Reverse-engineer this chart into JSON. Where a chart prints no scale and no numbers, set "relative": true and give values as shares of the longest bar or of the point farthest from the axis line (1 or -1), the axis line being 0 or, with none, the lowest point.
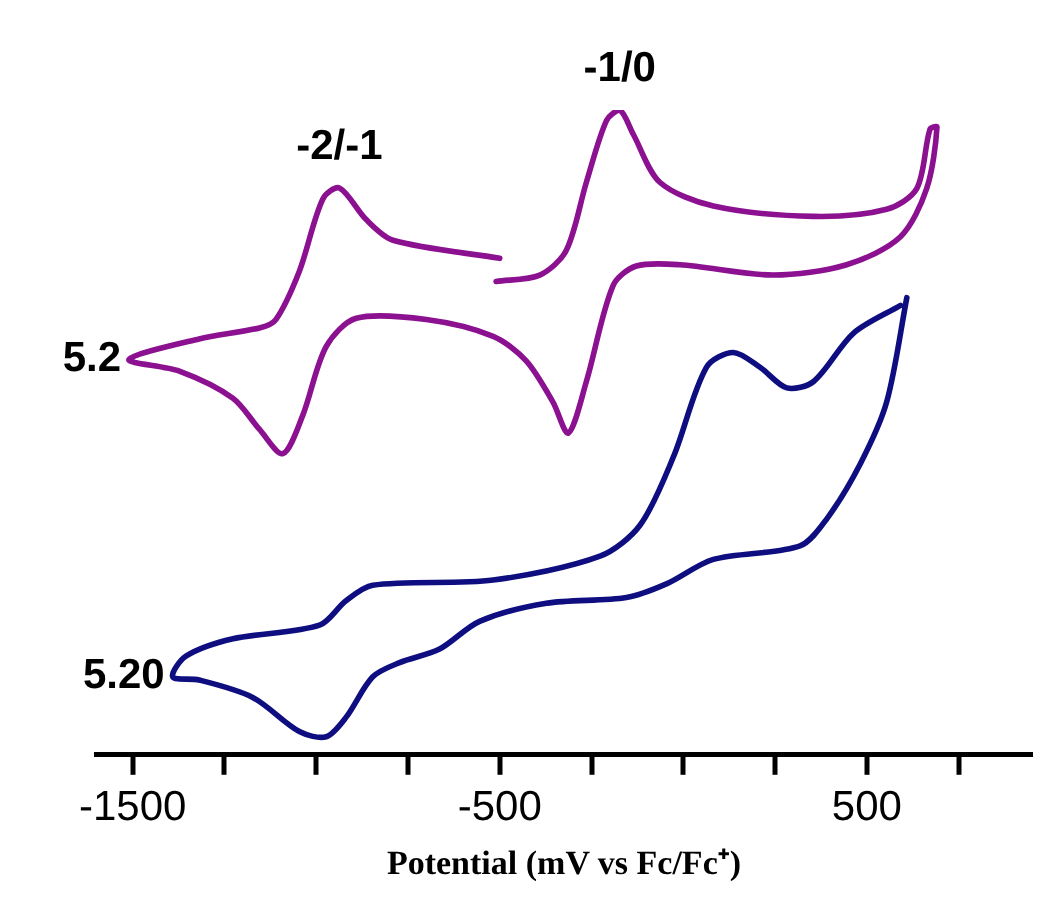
{
  "chart_data": {
    "type": "line",
    "xlabel": "Potential (mV vs Fc/Fc⁺)",
    "relative": true,
    "grid": false,
    "legend": false,
    "marker": "none",
    "line_style": "solid",
    "xlim": [
      -1600,
      950
    ],
    "xticks": [
      -1500,
      {
        "value": -1250,
        "label": null
      },
      {
        "value": -1000,
        "label": null
      },
      {
        "value": -750,
        "label": null
      },
      -500,
      {
        "value": -250,
        "label": null
      },
      {
        "value": 0,
        "label": null
      },
      {
        "value": 250,
        "label": null
      },
      500,
      {
        "value": 750,
        "label": null
      }
    ],
    "annotations": [
      {
        "text": "-2/-1",
        "x": -937,
        "y": 0.879
      },
      {
        "text": "-1/0",
        "x": -173,
        "y": 1
      }
    ],
    "series": [
      {
        "name": "5.2",
        "color": "#8b1190",
        "x": [
          -500,
          -791,
          -864,
          -937,
          -982,
          -1046,
          -1110,
          -1155,
          -1319,
          -1510,
          -1373,
          -1227,
          -1155,
          -1091,
          -1037,
          -973,
          -891,
          -700,
          -518,
          -428,
          -355,
          -313,
          -264,
          -191,
          -128,
          -9,
          245,
          445,
          591,
          663,
          691,
          672,
          636,
          554,
          355,
          82,
          -64,
          -136,
          -173,
          -209,
          -264,
          -319,
          -391,
          -510
        ],
        "values": [
          0.77,
          0.798,
          0.83,
          0.879,
          0.862,
          0.75,
          0.675,
          0.662,
          0.645,
          0.613,
          0.595,
          0.553,
          0.505,
          0.467,
          0.526,
          0.633,
          0.677,
          0.675,
          0.649,
          0.611,
          0.547,
          0.499,
          0.579,
          0.728,
          0.758,
          0.76,
          0.744,
          0.76,
          0.803,
          0.878,
          0.973,
          0.97,
          0.878,
          0.846,
          0.835,
          0.851,
          0.888,
          0.962,
          1,
          0.984,
          0.888,
          0.782,
          0.744,
          0.734
        ]
      },
      {
        "name": "5.20",
        "color": "#0e0e80",
        "x": [
          609,
          554,
          482,
          391,
          318,
          82,
          -46,
          -155,
          -373,
          -555,
          -664,
          -773,
          -846,
          -919,
          -973,
          -1046,
          -1173,
          -1319,
          -1391,
          -1355,
          -1227,
          -991,
          -919,
          -846,
          -518,
          -227,
          -118,
          -27,
          63,
          136,
          209,
          282,
          355,
          464,
          592
        ],
        "values": [
          0.709,
          0.547,
          0.451,
          0.366,
          0.324,
          0.303,
          0.265,
          0.244,
          0.235,
          0.207,
          0.164,
          0.143,
          0.121,
          0.058,
          0.028,
          0.036,
          0.089,
          0.116,
          0.121,
          0.153,
          0.18,
          0.201,
          0.239,
          0.263,
          0.271,
          0.308,
          0.356,
          0.462,
          0.601,
          0.624,
          0.601,
          0.569,
          0.579,
          0.654,
          0.697
        ]
      }
    ]
  }
}
